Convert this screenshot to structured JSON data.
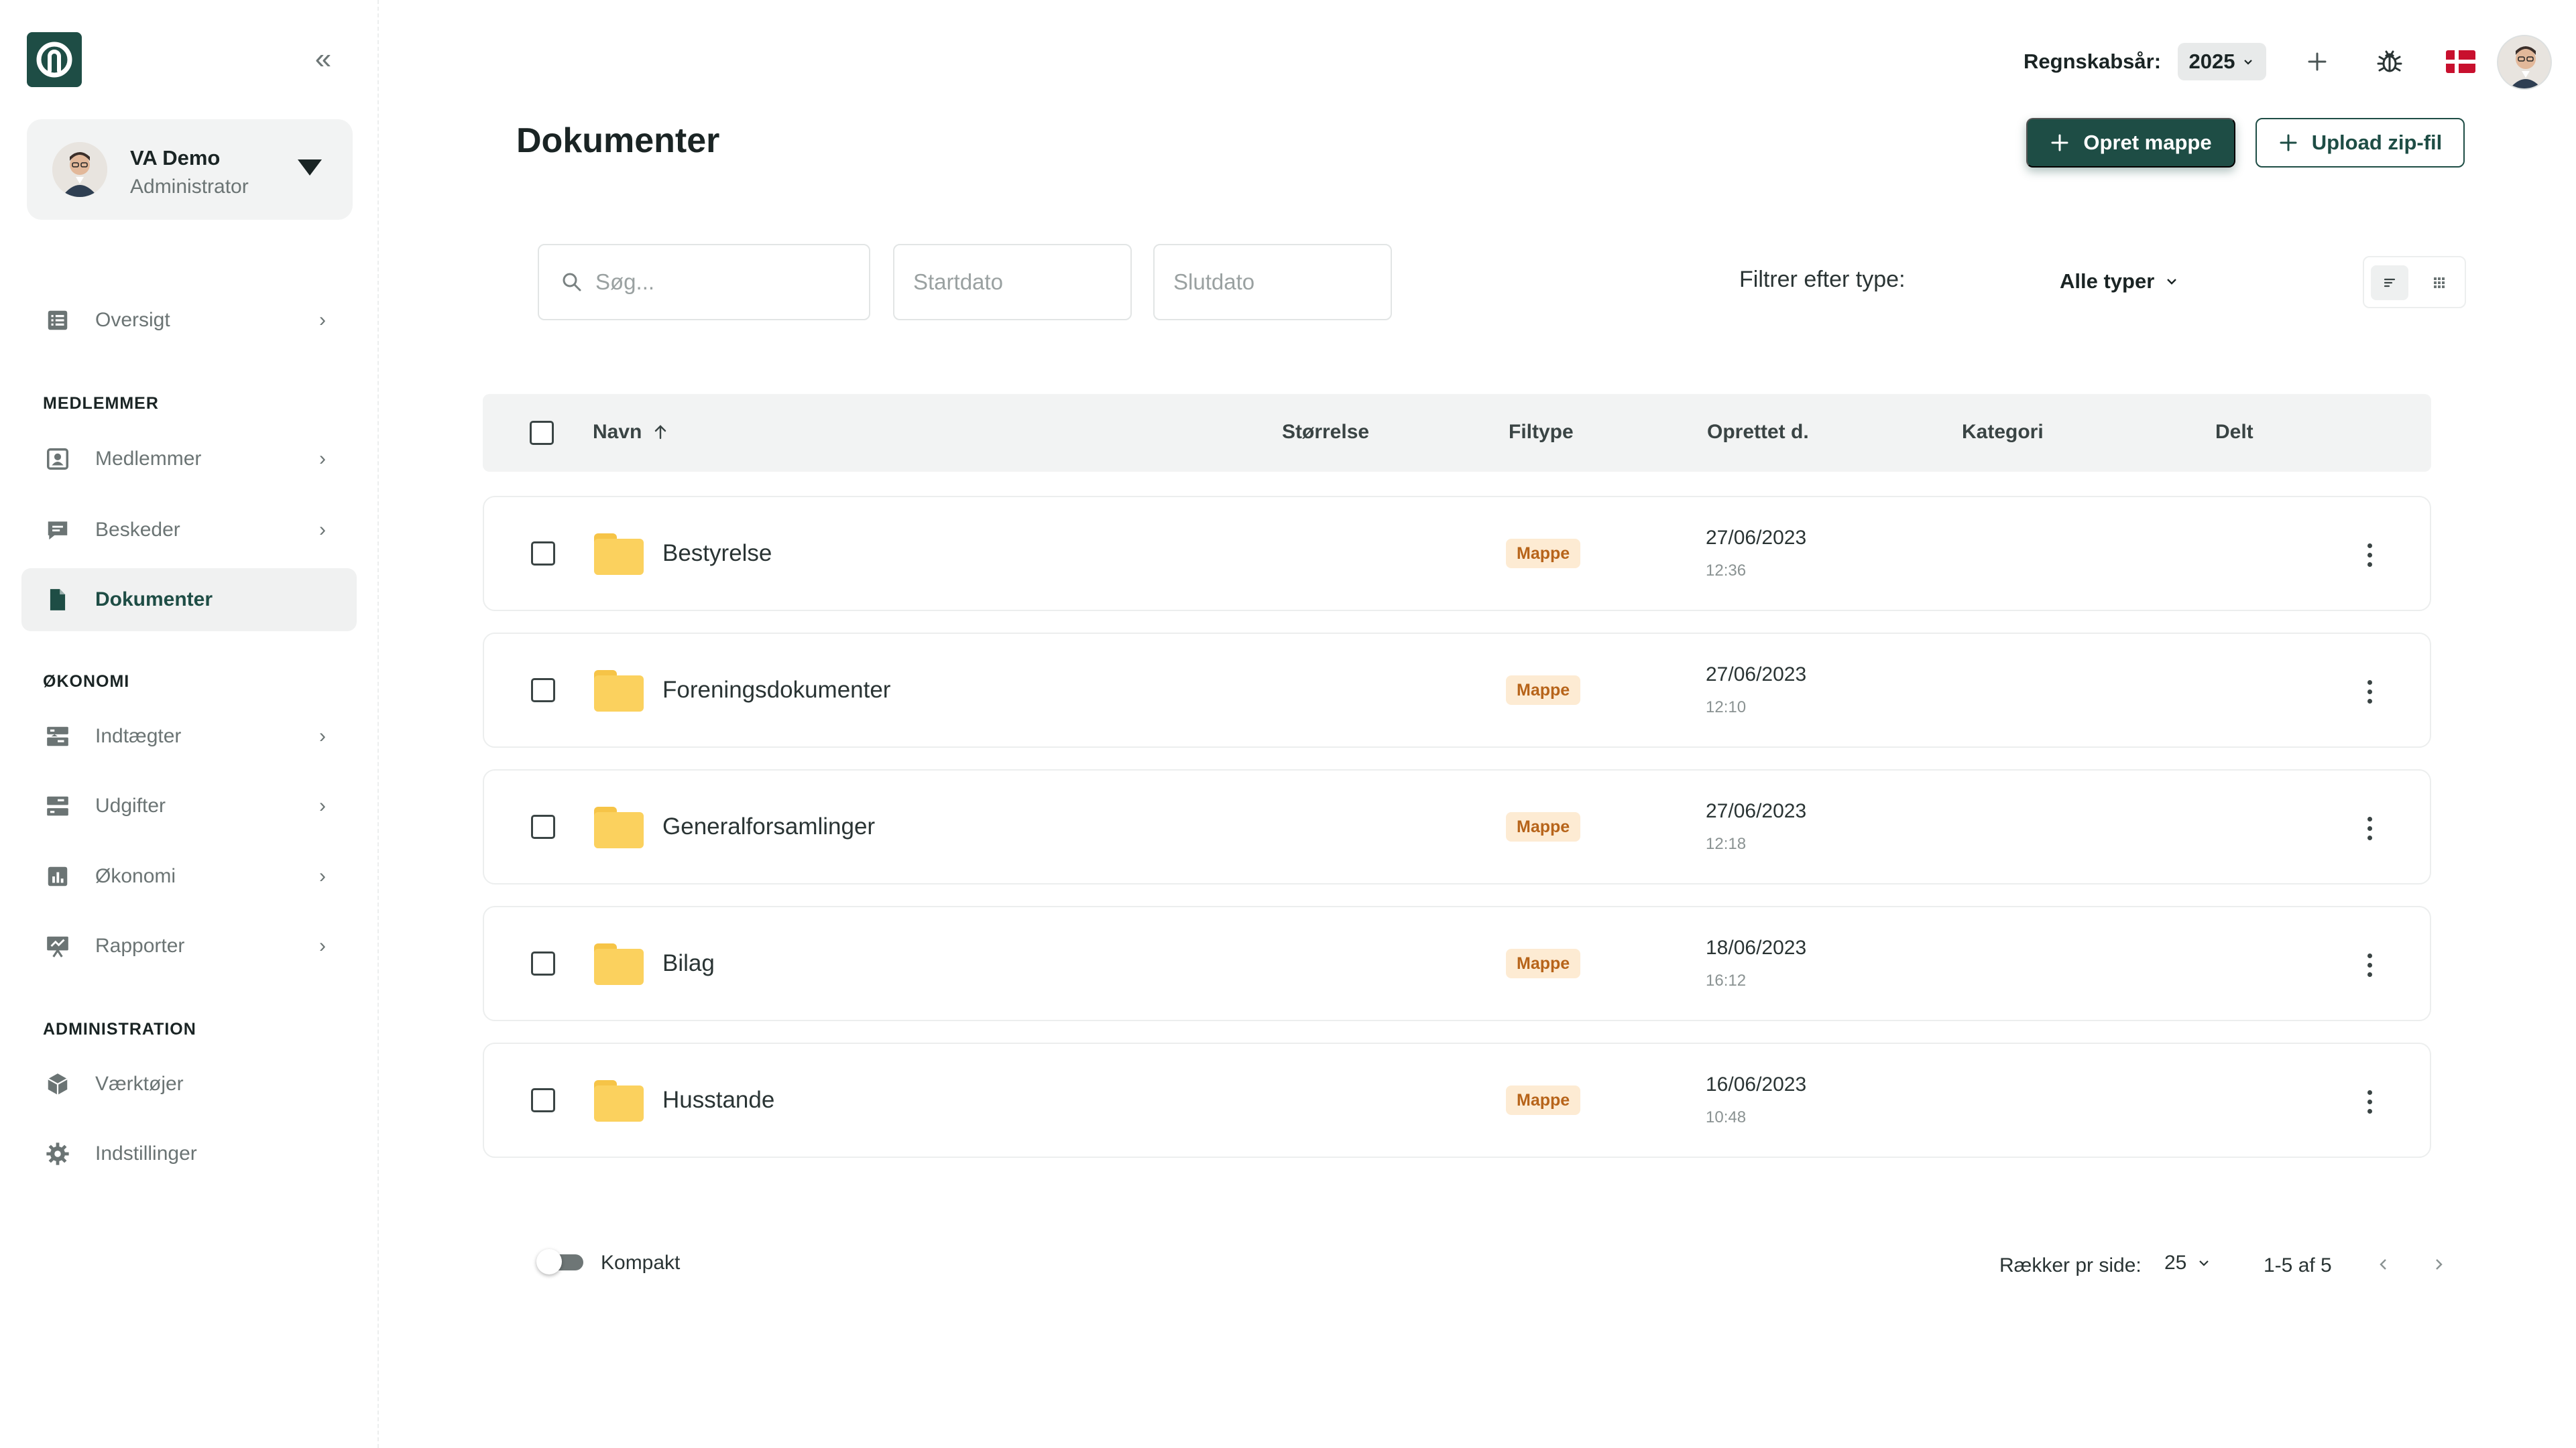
{
  "sidebar": {
    "user": {
      "name": "VA Demo",
      "role": "Administrator"
    },
    "items": [
      {
        "label": "Oversigt",
        "icon": "list-icon"
      },
      {
        "label": "Medlemmer",
        "icon": "member-icon"
      },
      {
        "label": "Beskeder",
        "icon": "message-icon"
      },
      {
        "label": "Dokumenter",
        "icon": "document-icon"
      },
      {
        "label": "Indtægter",
        "icon": "income-icon"
      },
      {
        "label": "Udgifter",
        "icon": "expense-icon"
      },
      {
        "label": "Økonomi",
        "icon": "chart-icon"
      },
      {
        "label": "Rapporter",
        "icon": "presentation-icon"
      },
      {
        "label": "Værktøjer",
        "icon": "cube-icon"
      },
      {
        "label": "Indstillinger",
        "icon": "gear-icon"
      }
    ],
    "sections": {
      "members": "MEDLEMMER",
      "economy": "ØKONOMI",
      "admin": "ADMINISTRATION"
    }
  },
  "topbar": {
    "fiscal_year_label": "Regnskabsår:",
    "fiscal_year": "2025"
  },
  "page": {
    "title": "Dokumenter",
    "create_folder": "Opret mappe",
    "upload_zip": "Upload zip-fil"
  },
  "filters": {
    "search_placeholder": "Søg...",
    "start_placeholder": "Startdato",
    "end_placeholder": "Slutdato",
    "type_label": "Filtrer efter type:",
    "type_value": "Alle typer"
  },
  "table": {
    "columns": {
      "name": "Navn",
      "size": "Størrelse",
      "filetype": "Filtype",
      "created": "Oprettet d.",
      "category": "Kategori",
      "shared": "Delt"
    },
    "rows": [
      {
        "name": "Bestyrelse",
        "type": "Mappe",
        "date": "27/06/2023",
        "time": "12:36"
      },
      {
        "name": "Foreningsdokumenter",
        "type": "Mappe",
        "date": "27/06/2023",
        "time": "12:10"
      },
      {
        "name": "Generalforsamlinger",
        "type": "Mappe",
        "date": "27/06/2023",
        "time": "12:18"
      },
      {
        "name": "Bilag",
        "type": "Mappe",
        "date": "18/06/2023",
        "time": "16:12"
      },
      {
        "name": "Husstande",
        "type": "Mappe",
        "date": "16/06/2023",
        "time": "10:48"
      }
    ]
  },
  "footer": {
    "compact_label": "Kompakt",
    "rows_per_page_label": "Rækker pr side:",
    "rows_per_page": "25",
    "range": "1-5 af 5"
  },
  "colors": {
    "brand": "#1e4d45",
    "badge_bg": "#fdebd3",
    "badge_text": "#b7641a",
    "folder": "#fbd15e"
  }
}
